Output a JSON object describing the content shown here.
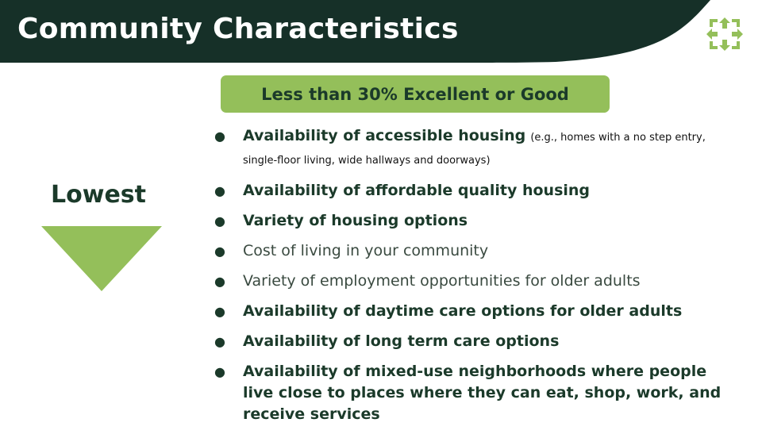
{
  "header": {
    "title": "Community Characteristics",
    "logo_icon": "green-arrows-logo-icon",
    "background_color": "#163028",
    "accent_color": "#94bf5a"
  },
  "badge": {
    "label": "Less than 30% Excellent or Good"
  },
  "rank": {
    "label": "Lowest",
    "indicator_icon": "down-triangle-icon"
  },
  "items": [
    {
      "text": "Availability of accessible housing",
      "note": "(e.g., homes with a no step entry, single-floor living, wide hallways and doorways)",
      "bold": true
    },
    {
      "text": "Availability of affordable quality housing",
      "bold": true
    },
    {
      "text": "Variety of housing options",
      "bold": true
    },
    {
      "text": "Cost of living in your community",
      "bold": false
    },
    {
      "text": "Variety of employment opportunities for older adults",
      "bold": false
    },
    {
      "text": "Availability of daytime care options for older adults",
      "bold": true
    },
    {
      "text": "Availability of long term care options",
      "bold": true
    },
    {
      "text": "Availability of mixed-use neighborhoods where people live close to places where they can eat, shop, work, and receive services",
      "bold": true
    }
  ]
}
